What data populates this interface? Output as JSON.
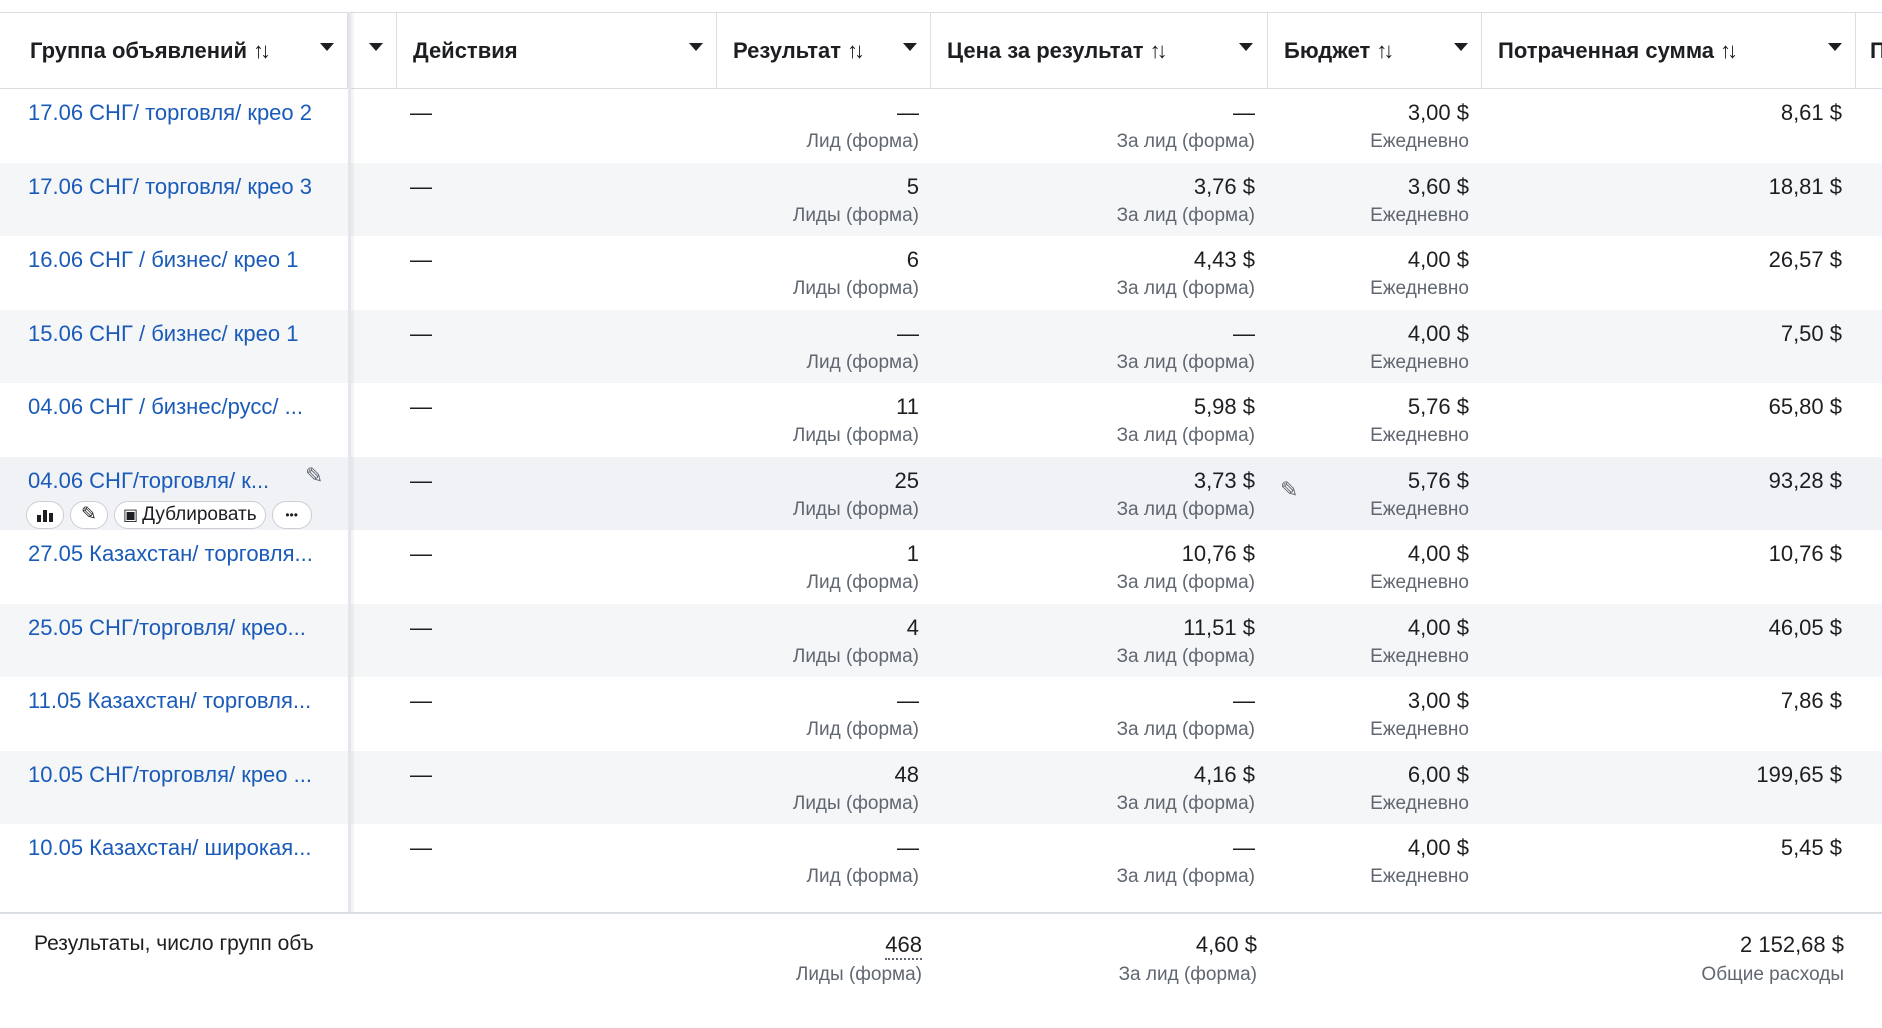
{
  "columns": {
    "ad_group": "Группа объявлений",
    "actions": "Действия",
    "result": "Результат",
    "cost_per_result": "Цена за результат",
    "budget": "Бюджет",
    "spent": "Потраченная сумма",
    "next_partial": "П"
  },
  "rows": [
    {
      "name": "17.06 СНГ/ торговля/ крео 2",
      "actions": "—",
      "result": "—",
      "result_sub": "Лид (форма)",
      "cost": "—",
      "cost_sub": "За лид (форма)",
      "budget": "3,00 $",
      "budget_sub": "Ежедневно",
      "spent": "8,61 $"
    },
    {
      "name": "17.06 СНГ/ торговля/ крео 3",
      "actions": "—",
      "result": "5",
      "result_sub": "Лиды (форма)",
      "cost": "3,76 $",
      "cost_sub": "За лид (форма)",
      "budget": "3,60 $",
      "budget_sub": "Ежедневно",
      "spent": "18,81 $"
    },
    {
      "name": "16.06 СНГ / бизнес/ крео 1",
      "actions": "—",
      "result": "6",
      "result_sub": "Лиды (форма)",
      "cost": "4,43 $",
      "cost_sub": "За лид (форма)",
      "budget": "4,00 $",
      "budget_sub": "Ежедневно",
      "spent": "26,57 $"
    },
    {
      "name": "15.06 СНГ / бизнес/ крео 1",
      "actions": "—",
      "result": "—",
      "result_sub": "Лид (форма)",
      "cost": "—",
      "cost_sub": "За лид (форма)",
      "budget": "4,00 $",
      "budget_sub": "Ежедневно",
      "spent": "7,50 $"
    },
    {
      "name": "04.06 СНГ / бизнес/русс/ ...",
      "actions": "—",
      "result": "11",
      "result_sub": "Лиды (форма)",
      "cost": "5,98 $",
      "cost_sub": "За лид (форма)",
      "budget": "5,76 $",
      "budget_sub": "Ежедневно",
      "spent": "65,80 $"
    },
    {
      "name": "04.06 СНГ/торговля/ к...",
      "actions": "—",
      "result": "25",
      "result_sub": "Лиды (форма)",
      "cost": "3,73 $",
      "cost_sub": "За лид (форма)",
      "budget": "5,76 $",
      "budget_sub": "Ежедневно",
      "spent": "93,28 $"
    },
    {
      "name": "27.05 Казахстан/ торговля...",
      "actions": "—",
      "result": "1",
      "result_sub": "Лид (форма)",
      "cost": "10,76 $",
      "cost_sub": "За лид (форма)",
      "budget": "4,00 $",
      "budget_sub": "Ежедневно",
      "spent": "10,76 $"
    },
    {
      "name": "25.05 СНГ/торговля/ крео...",
      "actions": "—",
      "result": "4",
      "result_sub": "Лиды (форма)",
      "cost": "11,51 $",
      "cost_sub": "За лид (форма)",
      "budget": "4,00 $",
      "budget_sub": "Ежедневно",
      "spent": "46,05 $"
    },
    {
      "name": "11.05 Казахстан/ торговля...",
      "actions": "—",
      "result": "—",
      "result_sub": "Лид (форма)",
      "cost": "—",
      "cost_sub": "За лид (форма)",
      "budget": "3,00 $",
      "budget_sub": "Ежедневно",
      "spent": "7,86 $"
    },
    {
      "name": "10.05 СНГ/торговля/ крео ...",
      "actions": "—",
      "result": "48",
      "result_sub": "Лиды (форма)",
      "cost": "4,16 $",
      "cost_sub": "За лид (форма)",
      "budget": "6,00 $",
      "budget_sub": "Ежедневно",
      "spent": "199,65 $"
    },
    {
      "name": "10.05 Казахстан/ широкая...",
      "actions": "—",
      "result": "—",
      "result_sub": "Лид (форма)",
      "cost": "—",
      "cost_sub": "За лид (форма)",
      "budget": "4,00 $",
      "budget_sub": "Ежедневно",
      "spent": "5,45 $"
    }
  ],
  "hover_toolbar": {
    "duplicate_label": "Дублировать",
    "more_label": "•••"
  },
  "footer": {
    "label": "Результаты, число групп объ",
    "result_total": "468",
    "result_sub": "Лиды (форма)",
    "cost_total": "4,60 $",
    "cost_sub": "За лид (форма)",
    "spent_total": "2 152,68 $",
    "spent_sub": "Общие расходы"
  },
  "colors": {
    "link": "#1a5bb9",
    "text": "#1c1e21",
    "muted": "#606770",
    "alt_row": "#f5f6f7",
    "border": "#dadde1"
  }
}
